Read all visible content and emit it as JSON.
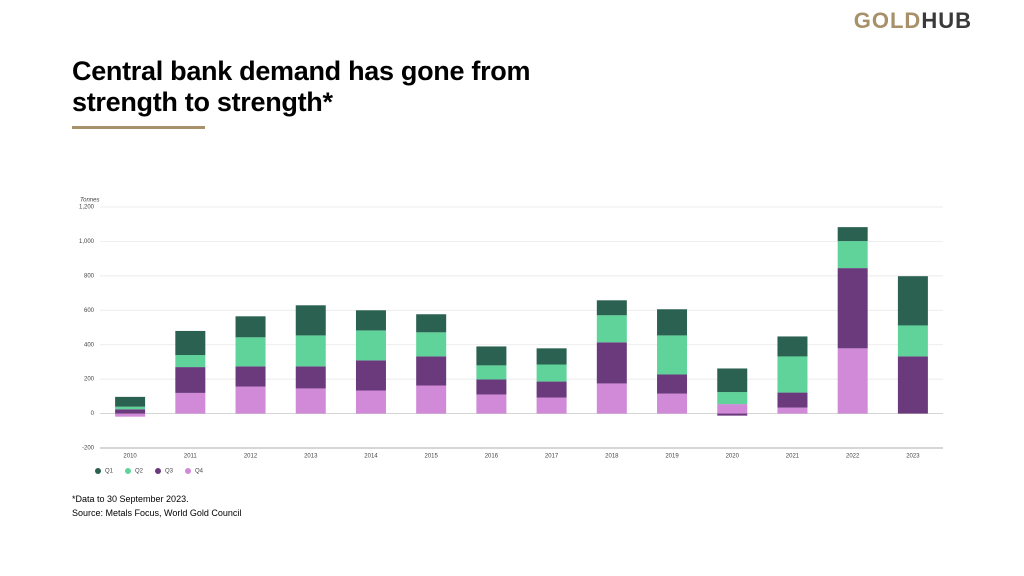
{
  "header": {
    "title": "Central bank demand has gone from strength to strength*",
    "logo_gold": "GOLD",
    "logo_hub": "HUB"
  },
  "footnotes": [
    "*Data to 30 September 2023.",
    "Source: Metals Focus, World Gold Council"
  ],
  "chart_data": {
    "type": "stacked_bar",
    "y_label": "Tonnes",
    "categories": [
      "2010",
      "2011",
      "2012",
      "2013",
      "2014",
      "2015",
      "2016",
      "2017",
      "2018",
      "2019",
      "2020",
      "2021",
      "2022",
      "2023"
    ],
    "series": [
      {
        "name": "Q1",
        "color": "#2a6151",
        "values": [
          57,
          140,
          122,
          175,
          117,
          105,
          110,
          94,
          87,
          152,
          137,
          116,
          81,
          286
        ]
      },
      {
        "name": "Q2",
        "color": "#5fd39a",
        "values": [
          15,
          70,
          169,
          180,
          174,
          140,
          82,
          99,
          157,
          227,
          70,
          210,
          157,
          180
        ]
      },
      {
        "name": "Q3",
        "color": "#6b3a7d",
        "values": [
          25,
          150,
          117,
          128,
          175,
          169,
          87,
          93,
          239,
          111,
          -12,
          87,
          466,
          332
        ]
      },
      {
        "name": "Q4",
        "color": "#d08ad8",
        "values": [
          -18,
          120,
          157,
          146,
          134,
          163,
          111,
          93,
          175,
          116,
          55,
          35,
          379,
          null
        ]
      }
    ],
    "ylim": [
      -200,
      1200
    ],
    "yticks": [
      -200,
      0,
      200,
      400,
      600,
      800,
      {
        "value": 1000,
        "label": "1,000"
      },
      {
        "value": 1200,
        "label": "1,200"
      }
    ],
    "grid": true
  }
}
